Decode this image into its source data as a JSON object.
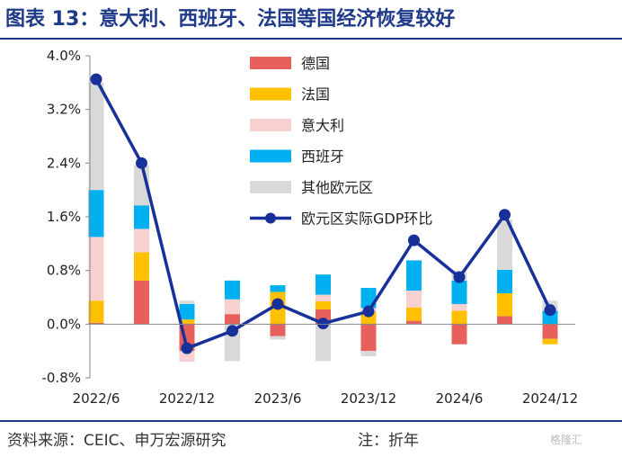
{
  "title": "图表 13：意大利、西班牙、法国等国经济恢复较好",
  "source": "资料来源：CEIC、申万宏源研究",
  "note": "注：折年",
  "watermark": "格隆汇",
  "colors": {
    "title": "#1f3a8a",
    "germany": "#e8605c",
    "france": "#ffc000",
    "italy": "#f7d0d0",
    "spain": "#00b0f0",
    "other": "#d9d9d9",
    "line": "#17309a"
  },
  "chart_data": {
    "type": "bar",
    "stacked": true,
    "x_tick_labels": [
      "2022/6",
      "2022/12",
      "2023/6",
      "2023/12",
      "2024/6",
      "2024/12"
    ],
    "periods": [
      "2022Q2",
      "2022Q3",
      "2022Q4",
      "2023Q1",
      "2023Q2",
      "2023Q3",
      "2023Q4",
      "2024Q1",
      "2024Q2",
      "2024Q3",
      "2024Q4"
    ],
    "ylim": [
      -0.8,
      4.0
    ],
    "y_ticks": [
      "4.0%",
      "3.2%",
      "2.4%",
      "1.6%",
      "0.8%",
      "0.0%",
      "-0.8%"
    ],
    "y_tick_values": [
      4.0,
      3.2,
      2.4,
      1.6,
      0.8,
      0.0,
      -0.8
    ],
    "legend_position": "top-right",
    "series": [
      {
        "name": "德国",
        "color_key": "germany",
        "values": [
          0.02,
          0.65,
          -0.4,
          0.15,
          -0.18,
          0.22,
          -0.4,
          0.05,
          -0.3,
          0.12,
          -0.22
        ]
      },
      {
        "name": "法国",
        "color_key": "france",
        "values": [
          0.33,
          0.42,
          0.07,
          0.0,
          0.48,
          0.12,
          0.18,
          0.2,
          0.2,
          0.34,
          -0.08
        ]
      },
      {
        "name": "意大利",
        "color_key": "italy",
        "values": [
          0.95,
          0.35,
          -0.16,
          0.22,
          0.0,
          0.1,
          0.06,
          0.25,
          0.1,
          0.0,
          0.0
        ]
      },
      {
        "name": "西班牙",
        "color_key": "spain",
        "values": [
          0.7,
          0.35,
          0.23,
          0.28,
          0.1,
          0.3,
          0.3,
          0.45,
          0.35,
          0.35,
          0.2
        ]
      },
      {
        "name": "其他欧元区",
        "color_key": "other",
        "values": [
          1.6,
          0.6,
          0.05,
          -0.55,
          -0.05,
          -0.55,
          -0.08,
          0.0,
          0.15,
          0.75,
          0.15
        ]
      }
    ],
    "line": {
      "name": "欧元区实际GDP环比",
      "color_key": "line",
      "values": [
        3.65,
        2.4,
        -0.36,
        -0.1,
        0.3,
        0.01,
        0.19,
        1.25,
        0.7,
        1.63,
        0.21
      ]
    }
  }
}
